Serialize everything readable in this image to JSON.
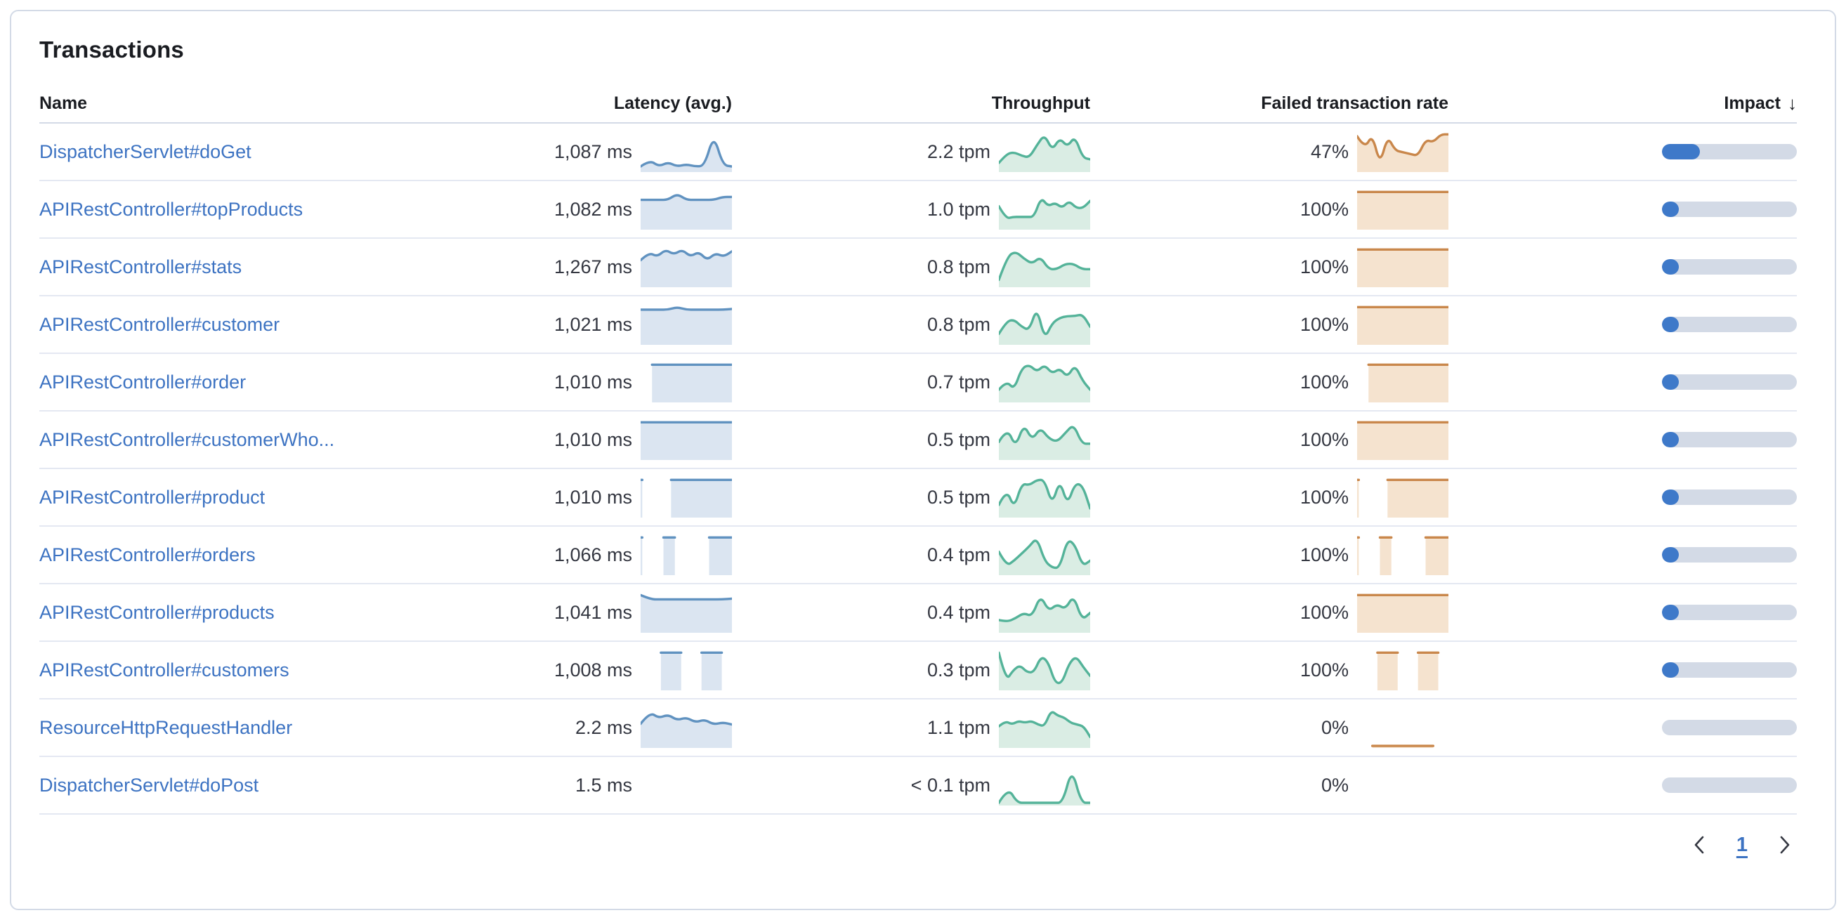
{
  "card": {
    "title": "Transactions"
  },
  "table": {
    "headers": {
      "name": "Name",
      "latency": "Latency (avg.)",
      "throughput": "Throughput",
      "failed": "Failed transaction rate",
      "impact": "Impact"
    },
    "sort": {
      "column": "impact",
      "direction": "desc",
      "icon": "↓"
    }
  },
  "colors": {
    "link": "#3D73C2",
    "latency_line": "#6092C0",
    "latency_fill": "#DBE5F1",
    "throughput_line": "#54B399",
    "throughput_fill": "#DAEDE4",
    "failed_line": "#C9874B",
    "failed_fill": "#F5E3CF",
    "impact_fill": "#3E79C9",
    "impact_track": "#D3DAE6"
  },
  "rows": [
    {
      "name": "DispatcherServlet#doGet",
      "latency": "1,087 ms",
      "throughput": "2.2 tpm",
      "failed": "47%",
      "impact_pct": 28,
      "latency_series": [
        0.1,
        0.28,
        0.1,
        0.22,
        0.1,
        0.16,
        0.1,
        0.12,
        1.0,
        0.14,
        0.1
      ],
      "throughput_series": [
        0.2,
        0.45,
        0.5,
        0.4,
        0.35,
        0.7,
        1.0,
        0.55,
        0.9,
        0.65,
        0.95,
        0.35,
        0.3
      ],
      "failed_series": [
        0.95,
        0.6,
        1.0,
        0.15,
        0.95,
        0.55,
        0.5,
        0.45,
        0.4,
        0.85,
        0.78,
        1.0,
        1.0
      ]
    },
    {
      "name": "APIRestController#topProducts",
      "latency": "1,082 ms",
      "throughput": "1.0 tpm",
      "failed": "100%",
      "impact_pct": 12,
      "latency_series": [
        0.78,
        0.78,
        0.78,
        0.78,
        0.95,
        0.78,
        0.78,
        0.78,
        0.78,
        0.86,
        0.86
      ],
      "throughput_series": [
        0.6,
        0.25,
        0.3,
        0.3,
        0.3,
        0.3,
        0.85,
        0.6,
        0.7,
        0.55,
        0.75,
        0.55,
        0.55,
        0.75
      ],
      "failed_series": [
        1,
        1,
        1,
        1,
        1,
        1,
        1,
        1
      ]
    },
    {
      "name": "APIRestController#stats",
      "latency": "1,267 ms",
      "throughput": "0.8 tpm",
      "failed": "100%",
      "impact_pct": 12,
      "latency_series": [
        0.7,
        0.92,
        0.8,
        1.0,
        0.86,
        1.0,
        0.8,
        0.94,
        0.7,
        0.9,
        0.8,
        0.95
      ],
      "throughput_series": [
        0.15,
        0.8,
        0.95,
        0.75,
        0.6,
        0.8,
        0.45,
        0.45,
        0.6,
        0.6,
        0.45,
        0.45
      ],
      "failed_series": [
        1,
        1,
        1,
        1,
        1,
        1,
        1,
        1
      ]
    },
    {
      "name": "APIRestController#customer",
      "latency": "1,021 ms",
      "throughput": "0.8 tpm",
      "failed": "100%",
      "impact_pct": 11,
      "latency_series": [
        0.93,
        0.93,
        0.93,
        0.93,
        1.0,
        0.93,
        0.93,
        0.93,
        0.93,
        0.93,
        0.95
      ],
      "throughput_series": [
        0.25,
        0.6,
        0.65,
        0.45,
        0.35,
        1.0,
        0.1,
        0.55,
        0.7,
        0.75,
        0.75,
        0.8,
        0.45
      ],
      "failed_series": [
        1,
        1,
        1,
        1,
        1,
        1,
        1,
        1
      ]
    },
    {
      "name": "APIRestController#order",
      "latency": "1,010 ms",
      "throughput": "0.7 tpm",
      "failed": "100%",
      "impact_pct": 9,
      "latency_series": [
        null,
        1,
        1,
        1,
        1,
        1,
        1,
        1,
        1
      ],
      "throughput_series": [
        0.3,
        0.55,
        0.3,
        0.9,
        1.0,
        0.8,
        1.0,
        0.75,
        0.9,
        0.65,
        1.0,
        0.55,
        0.3
      ],
      "failed_series": [
        null,
        1,
        1,
        1,
        1,
        1,
        1,
        1,
        1
      ]
    },
    {
      "name": "APIRestController#customerWho...",
      "latency": "1,010 ms",
      "throughput": "0.5 tpm",
      "failed": "100%",
      "impact_pct": 7,
      "latency_series": [
        1,
        1,
        1,
        1,
        1,
        1,
        1,
        1,
        1
      ],
      "throughput_series": [
        0.45,
        0.85,
        0.3,
        0.95,
        0.5,
        0.85,
        0.55,
        0.45,
        0.7,
        0.95,
        0.4,
        0.4
      ],
      "failed_series": [
        1,
        1,
        1,
        1,
        1,
        1,
        1,
        1
      ]
    },
    {
      "name": "APIRestController#product",
      "latency": "1,010 ms",
      "throughput": "0.5 tpm",
      "failed": "100%",
      "impact_pct": 7,
      "latency_series": [
        1,
        null,
        null,
        1,
        1,
        1,
        1,
        1,
        1,
        1
      ],
      "throughput_series": [
        0.3,
        0.75,
        0.2,
        0.9,
        0.85,
        1.0,
        1.0,
        0.3,
        1.0,
        0.3,
        0.9,
        0.85,
        0.2
      ],
      "failed_series": [
        1,
        null,
        null,
        1,
        1,
        1,
        1,
        1,
        1,
        1
      ]
    },
    {
      "name": "APIRestController#orders",
      "latency": "1,066 ms",
      "throughput": "0.4 tpm",
      "failed": "100%",
      "impact_pct": 6,
      "latency_series": [
        1,
        null,
        1,
        1,
        null,
        null,
        1,
        1,
        1
      ],
      "throughput_series": [
        0.6,
        0.2,
        0.35,
        0.55,
        0.75,
        1.0,
        0.35,
        0.15,
        0.15,
        0.95,
        0.8,
        0.2,
        0.35
      ],
      "failed_series": [
        1,
        null,
        1,
        1,
        null,
        null,
        1,
        1,
        1
      ]
    },
    {
      "name": "APIRestController#products",
      "latency": "1,041 ms",
      "throughput": "0.4 tpm",
      "failed": "100%",
      "impact_pct": 6,
      "latency_series": [
        1.0,
        0.88,
        0.88,
        0.88,
        0.88,
        0.88,
        0.88,
        0.88,
        0.88,
        0.9
      ],
      "throughput_series": [
        0.3,
        0.25,
        0.35,
        0.5,
        0.4,
        1.0,
        0.55,
        0.75,
        0.6,
        1.0,
        0.3,
        0.5
      ],
      "failed_series": [
        1,
        1,
        1,
        1,
        1,
        1,
        1,
        1
      ]
    },
    {
      "name": "APIRestController#customers",
      "latency": "1,008 ms",
      "throughput": "0.3 tpm",
      "failed": "100%",
      "impact_pct": 5,
      "latency_series": [
        null,
        null,
        1,
        1,
        1,
        null,
        1,
        1,
        1,
        null
      ],
      "throughput_series": [
        1.0,
        0.2,
        0.5,
        0.65,
        0.45,
        0.45,
        0.9,
        0.75,
        0.15,
        0.15,
        0.7,
        0.9,
        0.6,
        0.35
      ],
      "failed_series": [
        null,
        null,
        1,
        1,
        1,
        null,
        1,
        1,
        1,
        null
      ]
    },
    {
      "name": "ResourceHttpRequestHandler",
      "latency": "2.2 ms",
      "throughput": "1.1 tpm",
      "failed": "0%",
      "impact_pct": 0,
      "latency_series": [
        0.62,
        0.95,
        0.78,
        0.88,
        0.72,
        0.8,
        0.66,
        0.74,
        0.6,
        0.66,
        0.6
      ],
      "throughput_series": [
        0.55,
        0.7,
        0.6,
        0.7,
        0.65,
        0.7,
        0.6,
        0.55,
        1.0,
        0.85,
        0.8,
        0.65,
        0.6,
        0.55,
        0.25
      ],
      "failed_series": [
        null,
        0,
        0,
        0,
        0,
        0,
        null
      ]
    },
    {
      "name": "DispatcherServlet#doPost",
      "latency": "1.5 ms",
      "throughput": "< 0.1 tpm",
      "failed": "0%",
      "impact_pct": 0,
      "latency_series": [],
      "throughput_series": [
        0.02,
        0.45,
        0.02,
        0.02,
        0.02,
        0.02,
        0.02,
        0.02,
        1.0,
        0.02,
        0.02
      ],
      "failed_series": []
    }
  ],
  "pagination": {
    "current_page": "1"
  }
}
